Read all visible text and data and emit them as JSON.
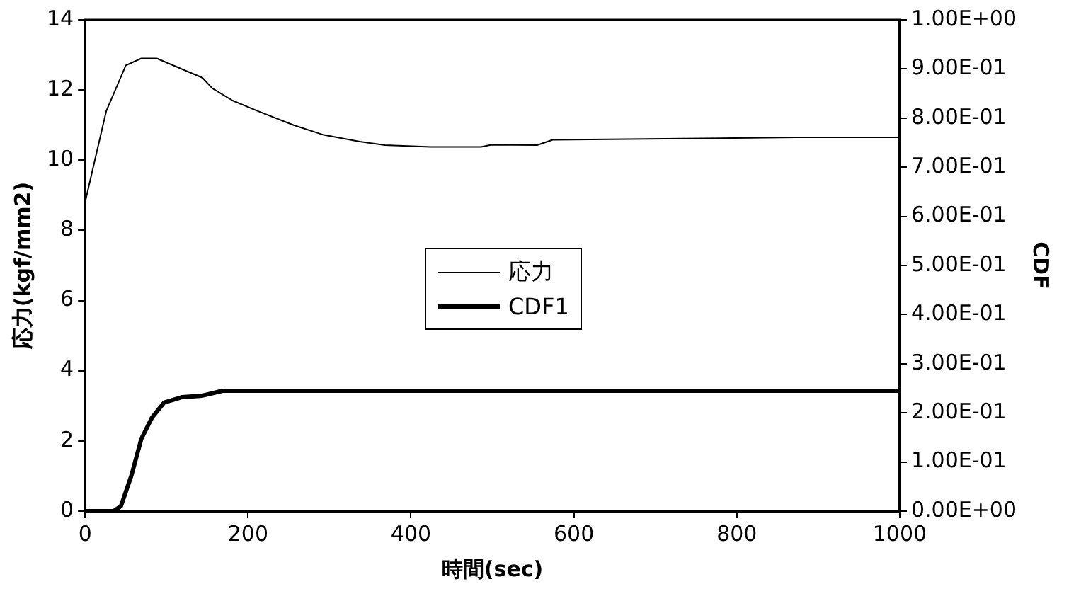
{
  "chart_data": {
    "type": "line",
    "xlabel": "時間(sec)",
    "ylabel": "応力(kgf/mm2)",
    "y2label": "CDF",
    "xlim": [
      0,
      1000
    ],
    "xticks": [
      0,
      200,
      400,
      600,
      800,
      1000
    ],
    "ylim": [
      0,
      14
    ],
    "yticks": [
      0,
      2,
      4,
      6,
      8,
      10,
      12,
      14
    ],
    "y2lim": [
      0,
      1
    ],
    "y2ticks": [
      {
        "value": 0,
        "label": "0.00E+00"
      },
      {
        "value": 0.1,
        "label": "1.00E-01"
      },
      {
        "value": 0.2,
        "label": "2.00E-01"
      },
      {
        "value": 0.3,
        "label": "3.00E-01"
      },
      {
        "value": 0.4,
        "label": "4.00E-01"
      },
      {
        "value": 0.5,
        "label": "5.00E-01"
      },
      {
        "value": 0.6,
        "label": "6.00E-01"
      },
      {
        "value": 0.7,
        "label": "7.00E-01"
      },
      {
        "value": 0.8,
        "label": "8.00E-01"
      },
      {
        "value": 0.9,
        "label": "9.00E-01"
      },
      {
        "value": 1,
        "label": "1.00E+00"
      }
    ],
    "grid": false,
    "legend": "center",
    "marker": "none",
    "line_style": "solid",
    "series": [
      {
        "name": "応力",
        "color": "#000000",
        "x": [
          0,
          13,
          26,
          50,
          69,
          88,
          144,
          156,
          181,
          212,
          256,
          293,
          337,
          368,
          424,
          486,
          499,
          555,
          574,
          873,
          1000
        ],
        "values": [
          8.8,
          10.1,
          11.4,
          12.7,
          12.9,
          12.9,
          12.35,
          12.05,
          11.7,
          11.4,
          11.0,
          10.72,
          10.53,
          10.43,
          10.38,
          10.38,
          10.44,
          10.43,
          10.58,
          10.65,
          10.65
        ]
      },
      {
        "name": "CDF1",
        "color": "#000000",
        "axis": "y2",
        "x": [
          0,
          35,
          44,
          57,
          69,
          82,
          97,
          119,
          144,
          169,
          1000
        ],
        "values": [
          0,
          0,
          0.01,
          0.073,
          0.147,
          0.19,
          0.221,
          0.232,
          0.235,
          0.245,
          0.245
        ]
      }
    ]
  }
}
